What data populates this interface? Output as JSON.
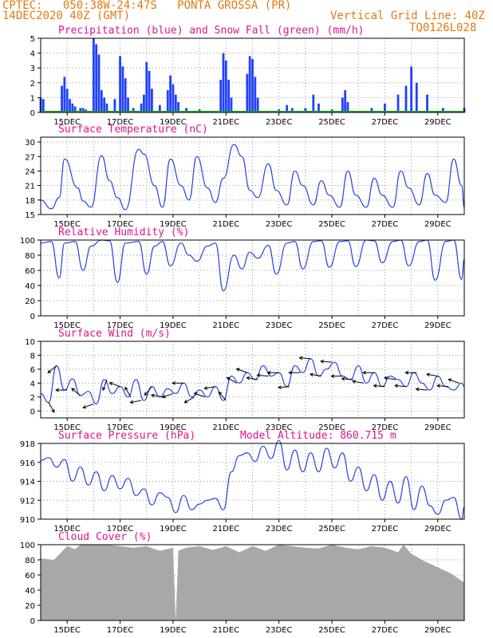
{
  "header": {
    "line1_left": "CPTEC:   050:38W-24:47S   PONTA GROSSA (PR)",
    "line2_left": "14DEC2020 40Z (GMT)",
    "line2_right": "Vertical Grid Line: 40Z",
    "line3_right": "TQ0126L028"
  },
  "colors": {
    "header_orange": "#e07a10",
    "title_magenta": "#e0148c",
    "precip": "#2040ff",
    "snow": "#22aa22",
    "line": "#2a44dd",
    "wind_arrow": "#000000",
    "cloud_fill": "#a8a8a8",
    "grid": "#999999"
  },
  "chart_data": [
    {
      "type": "bar",
      "title": "Precipitation (blue) and Snow Fall (green) (mm/h)",
      "ylim": [
        0,
        5
      ],
      "yticks": [
        "0",
        "1",
        "2",
        "3",
        "4",
        "5"
      ],
      "xticks": [
        "15DEC",
        "17DEC",
        "19DEC",
        "21DEC",
        "23DEC",
        "25DEC",
        "27DEC",
        "29DEC"
      ],
      "grid": true,
      "series": [
        {
          "name": "Precipitation",
          "x_days": [
            0.0,
            0.1,
            0.8,
            0.9,
            1.0,
            1.1,
            1.2,
            1.3,
            1.5,
            1.6,
            1.7,
            2.0,
            2.1,
            2.2,
            2.3,
            2.4,
            2.5,
            2.8,
            3.0,
            3.1,
            3.2,
            3.3,
            3.5,
            3.8,
            3.9,
            4.0,
            4.1,
            4.2,
            4.5,
            4.8,
            4.9,
            5.0,
            5.1,
            5.2,
            5.5,
            6.0,
            6.8,
            6.9,
            7.0,
            7.1,
            7.2,
            7.8,
            7.9,
            8.0,
            8.1,
            8.2,
            9.0,
            9.3,
            9.5,
            10.0,
            10.3,
            10.5,
            11.0,
            11.4,
            11.5,
            11.6,
            12.5,
            13.0,
            13.5,
            13.8,
            14.0,
            14.2,
            14.6,
            15.2,
            16.0
          ],
          "values": [
            1.0,
            0.9,
            1.8,
            2.4,
            1.6,
            0.9,
            0.6,
            0.4,
            0.3,
            0.3,
            0.2,
            5.0,
            4.6,
            3.9,
            1.5,
            1.0,
            0.6,
            0.9,
            3.8,
            3.1,
            2.3,
            1.0,
            0.3,
            0.6,
            1.2,
            3.4,
            2.8,
            1.6,
            0.5,
            1.5,
            2.5,
            1.9,
            1.2,
            0.7,
            0.3,
            0.2,
            2.2,
            4.0,
            3.5,
            2.2,
            1.0,
            2.6,
            3.8,
            3.6,
            2.4,
            1.0,
            0.2,
            0.5,
            0.3,
            0.3,
            1.2,
            0.6,
            0.2,
            1.0,
            1.5,
            0.7,
            0.3,
            0.6,
            1.2,
            1.8,
            3.1,
            2.0,
            1.2,
            0.3,
            0.3
          ]
        },
        {
          "name": "Snow Fall",
          "x_days": [],
          "values": []
        }
      ]
    },
    {
      "type": "line",
      "title": "Surface Temperature (nC)",
      "ylim": [
        15,
        31
      ],
      "yticks": [
        "15",
        "18",
        "21",
        "24",
        "27",
        "30"
      ],
      "xticks": [
        "15DEC",
        "17DEC",
        "19DEC",
        "21DEC",
        "23DEC",
        "25DEC",
        "27DEC",
        "29DEC"
      ],
      "grid": true,
      "series": [
        {
          "name": "Temperature",
          "x_days": [
            0.0,
            0.4,
            0.7,
            0.9,
            1.4,
            1.6,
            1.9,
            2.3,
            2.6,
            2.9,
            3.2,
            3.7,
            3.9,
            4.3,
            4.6,
            4.9,
            5.3,
            5.6,
            5.9,
            6.3,
            6.6,
            6.9,
            7.3,
            7.6,
            7.9,
            8.2,
            8.6,
            8.9,
            9.3,
            9.6,
            9.9,
            10.3,
            10.6,
            10.9,
            11.3,
            11.6,
            11.9,
            12.3,
            12.6,
            12.9,
            13.3,
            13.6,
            13.9,
            14.3,
            14.6,
            14.9,
            15.3,
            15.6,
            15.9,
            16.0
          ],
          "values": [
            18.0,
            16.2,
            18.5,
            26.5,
            20.5,
            17.8,
            16.5,
            27.2,
            22.0,
            18.5,
            16.0,
            28.5,
            27.5,
            21.0,
            16.5,
            26.5,
            21.0,
            18.0,
            27.0,
            20.5,
            17.5,
            22.5,
            29.5,
            27.0,
            20.0,
            18.5,
            25.5,
            20.0,
            17.0,
            24.0,
            21.0,
            17.0,
            22.0,
            19.0,
            16.5,
            24.0,
            19.0,
            16.5,
            22.5,
            19.0,
            16.5,
            24.0,
            20.5,
            17.0,
            23.5,
            19.0,
            17.5,
            26.5,
            21.0,
            16.5
          ]
        }
      ]
    },
    {
      "type": "line",
      "title": "Relative Humidity (%)",
      "ylim": [
        0,
        100
      ],
      "yticks": [
        "0",
        "20",
        "40",
        "60",
        "80",
        "100"
      ],
      "xticks": [
        "15DEC",
        "17DEC",
        "19DEC",
        "21DEC",
        "23DEC",
        "25DEC",
        "27DEC",
        "29DEC"
      ],
      "grid": true,
      "series": [
        {
          "name": "Humidity",
          "x_days": [
            0.0,
            0.4,
            0.7,
            0.9,
            1.3,
            1.6,
            1.9,
            2.3,
            2.6,
            2.9,
            3.2,
            3.7,
            4.0,
            4.3,
            4.6,
            4.9,
            5.3,
            5.6,
            5.9,
            6.3,
            6.6,
            6.9,
            7.3,
            7.6,
            7.9,
            8.2,
            8.6,
            8.9,
            9.3,
            9.6,
            9.9,
            10.3,
            10.6,
            10.9,
            11.3,
            11.6,
            11.9,
            12.3,
            12.6,
            12.9,
            13.3,
            13.6,
            13.9,
            14.3,
            14.6,
            14.9,
            15.3,
            15.6,
            15.9,
            16.0
          ],
          "values": [
            96,
            98,
            50,
            96,
            98,
            60,
            92,
            100,
            99,
            44,
            96,
            98,
            55,
            92,
            98,
            66,
            96,
            80,
            72,
            92,
            96,
            33,
            80,
            62,
            84,
            76,
            93,
            55,
            96,
            98,
            62,
            98,
            99,
            64,
            98,
            99,
            65,
            100,
            99,
            70,
            98,
            100,
            66,
            98,
            100,
            47,
            98,
            100,
            48,
            75
          ]
        }
      ]
    },
    {
      "type": "line",
      "title": "Surface Wind (m/s)",
      "ylim": [
        -1,
        10
      ],
      "yticks": [
        "0",
        "2",
        "4",
        "6",
        "8",
        "10"
      ],
      "xticks": [
        "15DEC",
        "17DEC",
        "19DEC",
        "21DEC",
        "23DEC",
        "25DEC",
        "27DEC",
        "29DEC"
      ],
      "grid": true,
      "series": [
        {
          "name": "Wind speed",
          "x_days": [
            0.0,
            0.3,
            0.6,
            0.9,
            1.2,
            1.5,
            1.8,
            2.1,
            2.4,
            2.7,
            3.0,
            3.3,
            3.6,
            3.9,
            4.2,
            4.5,
            4.8,
            5.1,
            5.4,
            5.7,
            6.0,
            6.3,
            6.6,
            6.9,
            7.2,
            7.5,
            7.8,
            8.1,
            8.4,
            8.7,
            9.0,
            9.3,
            9.6,
            9.9,
            10.2,
            10.5,
            10.8,
            11.1,
            11.4,
            11.7,
            12.0,
            12.3,
            12.6,
            12.9,
            13.2,
            13.5,
            13.8,
            14.1,
            14.4,
            14.7,
            15.0,
            15.3,
            15.6,
            15.9,
            16.0
          ],
          "values": [
            2.5,
            1.2,
            6.5,
            3.0,
            4.6,
            2.2,
            2.8,
            1.0,
            4.5,
            2.5,
            3.5,
            2.0,
            4.5,
            1.5,
            3.5,
            2.0,
            3.2,
            2.5,
            4.0,
            2.0,
            3.0,
            2.0,
            3.5,
            1.5,
            5.0,
            4.0,
            5.5,
            4.5,
            6.5,
            5.0,
            5.5,
            3.5,
            6.5,
            5.5,
            7.5,
            5.0,
            6.0,
            7.0,
            5.0,
            4.5,
            6.5,
            4.0,
            5.5,
            3.5,
            5.0,
            4.5,
            3.5,
            5.5,
            4.0,
            3.0,
            5.0,
            3.5,
            3.0,
            4.0,
            3.5
          ]
        },
        {
          "name": "Wind direction",
          "arrows_at_days": [
            0.3,
            0.6,
            1.0,
            1.5,
            2.0,
            2.5,
            3.0,
            3.4,
            3.8,
            4.2,
            4.6,
            5.0,
            5.4,
            5.8,
            6.2,
            6.6,
            7.0,
            7.4,
            7.8,
            8.2,
            8.6,
            9.0,
            9.4,
            9.8,
            10.2,
            10.6,
            11.0,
            11.4,
            11.8,
            12.2,
            12.6,
            13.0,
            13.4,
            13.8,
            14.2,
            14.6,
            15.0,
            15.4,
            15.8
          ],
          "heading_deg": [
            300,
            220,
            180,
            140,
            200,
            250,
            160,
            120,
            190,
            230,
            170,
            200,
            180,
            210,
            160,
            190,
            130,
            150,
            160,
            170,
            175,
            180,
            185,
            180,
            175,
            170,
            175,
            180,
            175,
            170,
            180,
            175,
            170,
            175,
            180,
            175,
            170,
            175,
            160
          ]
        }
      ]
    },
    {
      "type": "line",
      "title": "Surface Pressure (hPa)",
      "annotation": "Model Altitude: 860.715 m",
      "ylim": [
        910,
        918
      ],
      "yticks": [
        "910",
        "912",
        "914",
        "916",
        "918"
      ],
      "xticks": [
        "15DEC",
        "17DEC",
        "19DEC",
        "21DEC",
        "23DEC",
        "25DEC",
        "27DEC",
        "29DEC"
      ],
      "grid": true,
      "series": [
        {
          "name": "Pressure",
          "x_days": [
            0.0,
            0.3,
            0.6,
            0.9,
            1.2,
            1.5,
            1.8,
            2.1,
            2.4,
            2.7,
            3.0,
            3.3,
            3.6,
            3.9,
            4.2,
            4.5,
            4.8,
            5.1,
            5.4,
            5.7,
            6.0,
            6.3,
            6.6,
            6.9,
            7.2,
            7.5,
            7.8,
            8.1,
            8.4,
            8.7,
            9.0,
            9.3,
            9.6,
            9.9,
            10.2,
            10.5,
            10.8,
            11.1,
            11.4,
            11.7,
            12.0,
            12.3,
            12.6,
            12.9,
            13.2,
            13.5,
            13.8,
            14.1,
            14.4,
            14.7,
            15.0,
            15.3,
            15.6,
            15.9,
            16.0
          ],
          "values": [
            916.2,
            916.5,
            915.5,
            916.3,
            914.0,
            915.5,
            913.6,
            915.0,
            913.0,
            914.6,
            913.2,
            914.3,
            912.5,
            913.2,
            911.5,
            912.8,
            912.3,
            910.7,
            912.5,
            911.0,
            911.6,
            912.0,
            912.2,
            911.0,
            915.0,
            916.7,
            917.0,
            916.1,
            917.7,
            916.4,
            918.3,
            915.2,
            917.3,
            915.0,
            917.0,
            915.0,
            917.5,
            915.4,
            917.0,
            914.0,
            915.5,
            913.0,
            914.7,
            912.0,
            914.0,
            911.7,
            914.5,
            911.0,
            913.5,
            911.4,
            910.5,
            912.0,
            912.3,
            910.0,
            911.3
          ]
        }
      ]
    },
    {
      "type": "area",
      "title": "Cloud Cover (%)",
      "ylim": [
        0,
        100
      ],
      "yticks": [
        "0",
        "20",
        "40",
        "60",
        "80",
        "100"
      ],
      "xticks": [
        "15DEC",
        "17DEC",
        "19DEC",
        "21DEC",
        "23DEC",
        "25DEC",
        "27DEC",
        "29DEC"
      ],
      "grid": true,
      "series": [
        {
          "name": "Cloud cover",
          "x_days": [
            0.0,
            0.5,
            1.0,
            1.3,
            1.5,
            2.0,
            2.5,
            3.0,
            3.5,
            4.0,
            4.5,
            5.0,
            5.1,
            5.2,
            5.5,
            6.0,
            6.5,
            7.0,
            7.5,
            8.0,
            8.5,
            9.0,
            9.5,
            10.0,
            10.5,
            11.0,
            11.5,
            12.0,
            12.5,
            13.0,
            13.5,
            13.7,
            14.0,
            14.5,
            15.0,
            15.5,
            16.0
          ],
          "values": [
            82,
            80,
            98,
            94,
            100,
            100,
            100,
            98,
            96,
            98,
            92,
            96,
            0,
            92,
            96,
            98,
            93,
            98,
            90,
            98,
            92,
            100,
            98,
            96,
            95,
            100,
            96,
            94,
            98,
            96,
            90,
            100,
            88,
            78,
            70,
            62,
            50
          ]
        }
      ]
    }
  ]
}
